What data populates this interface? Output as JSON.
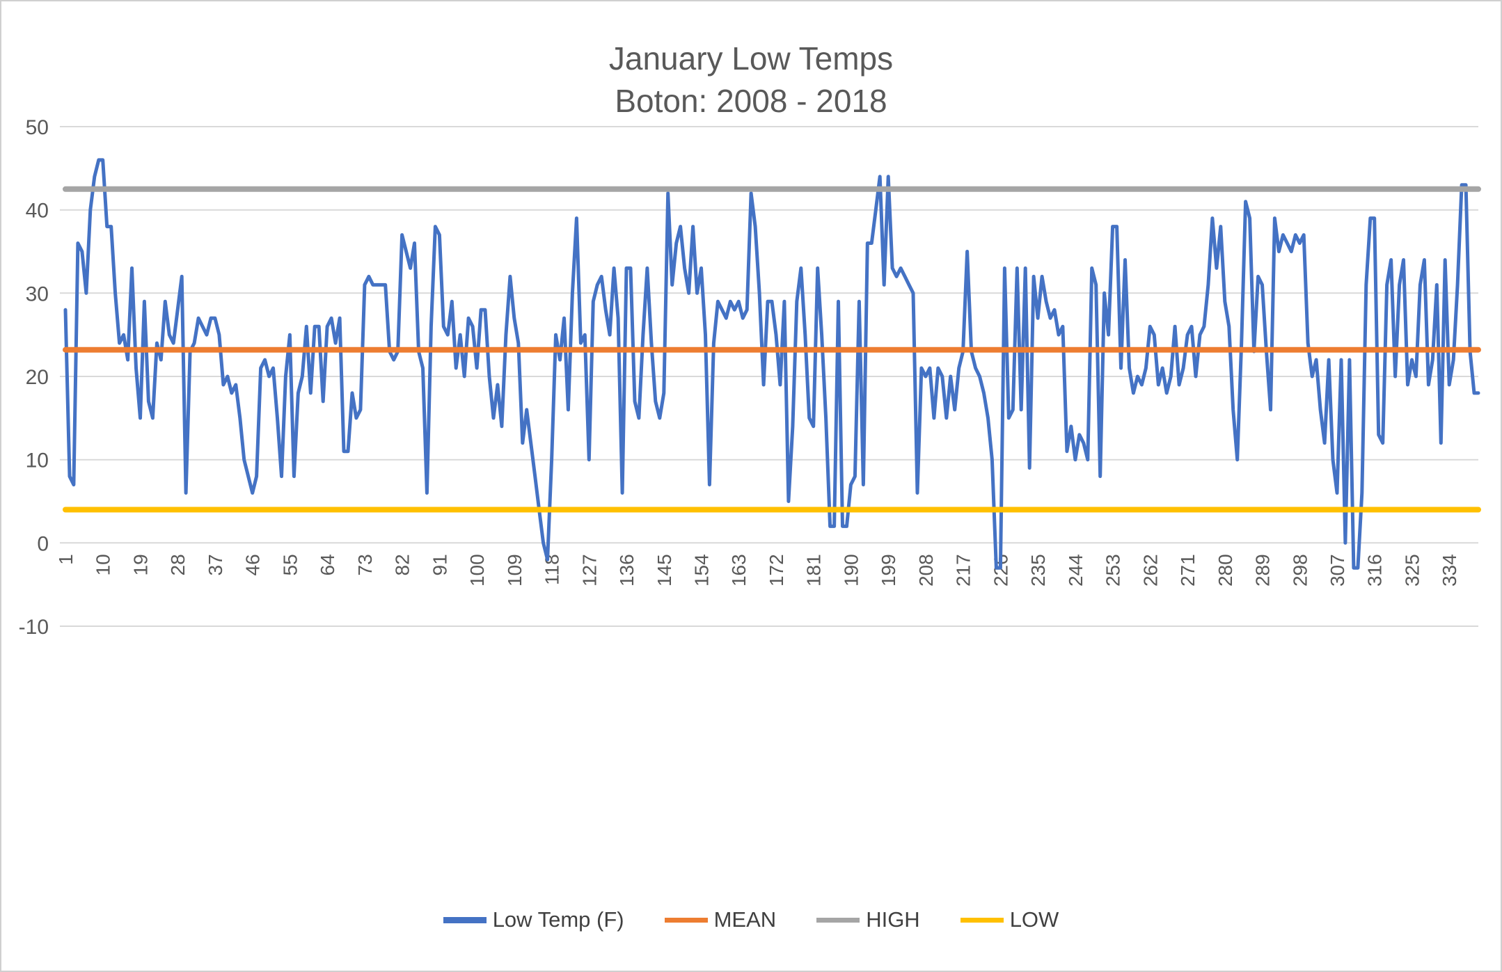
{
  "title": {
    "line1": "January Low Temps",
    "line2": "Boton: 2008 - 2018"
  },
  "legend": [
    {
      "label": "Low Temp (F)",
      "color": "#4472C4"
    },
    {
      "label": "MEAN",
      "color": "#ED7D31"
    },
    {
      "label": "HIGH",
      "color": "#A5A5A5"
    },
    {
      "label": "LOW",
      "color": "#FFC000"
    }
  ],
  "chart_data": {
    "type": "line",
    "title": "January Low Temps",
    "subtitle": "Boton: 2008 - 2018",
    "xlabel": "",
    "ylabel": "",
    "ylim": [
      -10,
      50
    ],
    "y_ticks": [
      50,
      40,
      30,
      20,
      10,
      0,
      -10
    ],
    "x_count": 341,
    "x_tick_labels": [
      1,
      10,
      19,
      28,
      37,
      46,
      55,
      64,
      73,
      82,
      91,
      100,
      109,
      118,
      127,
      136,
      145,
      154,
      163,
      172,
      181,
      190,
      199,
      208,
      217,
      226,
      235,
      244,
      253,
      262,
      271,
      280,
      289,
      298,
      307,
      316,
      325,
      334
    ],
    "grid": true,
    "legend_position": "bottom",
    "colors": {
      "gridline": "#D9D9D9",
      "axis_text": "#595959",
      "title_text": "#595959"
    },
    "series": [
      {
        "id": "low-temp",
        "name": "Low Temp (F)",
        "color": "#4472C4",
        "values": [
          28,
          8,
          7,
          36,
          35,
          30,
          40,
          44,
          46,
          46,
          38,
          38,
          30,
          24,
          25,
          22,
          33,
          21,
          15,
          29,
          17,
          15,
          24,
          22,
          29,
          25,
          24,
          28,
          32,
          6,
          23,
          24,
          27,
          26,
          25,
          27,
          27,
          25,
          19,
          20,
          18,
          19,
          15,
          10,
          8,
          6,
          8,
          21,
          22,
          20,
          21,
          15,
          8,
          20,
          25,
          8,
          18,
          20,
          26,
          18,
          26,
          26,
          17,
          26,
          27,
          24,
          27,
          11,
          11,
          18,
          15,
          16,
          31,
          32,
          31,
          31,
          31,
          31,
          23,
          22,
          23,
          37,
          35,
          33,
          36,
          23,
          21,
          6,
          26,
          38,
          37,
          26,
          25,
          29,
          21,
          25,
          20,
          27,
          26,
          21,
          28,
          28,
          20,
          15,
          19,
          14,
          25,
          32,
          27,
          24,
          12,
          16,
          12,
          8,
          4,
          0,
          -2,
          10,
          25,
          22,
          27,
          16,
          30,
          39,
          24,
          25,
          10,
          29,
          31,
          32,
          28,
          25,
          33,
          27,
          6,
          33,
          33,
          17,
          15,
          25,
          33,
          24,
          17,
          15,
          18,
          42,
          31,
          36,
          38,
          33,
          30,
          38,
          30,
          33,
          25,
          7,
          24,
          29,
          28,
          27,
          29,
          28,
          29,
          27,
          28,
          42,
          38,
          30,
          19,
          29,
          29,
          25,
          19,
          29,
          5,
          14,
          29,
          33,
          25,
          15,
          14,
          33,
          25,
          15,
          2,
          2,
          29,
          2,
          2,
          7,
          8,
          29,
          7,
          36,
          36,
          40,
          44,
          31,
          44,
          33,
          32,
          33,
          32,
          31,
          30,
          6,
          21,
          20,
          21,
          15,
          21,
          20,
          15,
          20,
          16,
          21,
          23,
          35,
          23,
          21,
          20,
          18,
          15,
          10,
          -3,
          -3,
          33,
          15,
          16,
          33,
          16,
          33,
          9,
          32,
          27,
          32,
          29,
          27,
          28,
          25,
          26,
          11,
          14,
          10,
          13,
          12,
          10,
          33,
          31,
          8,
          30,
          25,
          38,
          38,
          21,
          34,
          21,
          18,
          20,
          19,
          21,
          26,
          25,
          19,
          21,
          18,
          20,
          26,
          19,
          21,
          25,
          26,
          20,
          25,
          26,
          31,
          39,
          33,
          38,
          29,
          26,
          16,
          10,
          24,
          41,
          39,
          23,
          32,
          31,
          23,
          16,
          39,
          35,
          37,
          36,
          35,
          37,
          36,
          37,
          24,
          20,
          22,
          16,
          12,
          22,
          10,
          6,
          22,
          0,
          22,
          -3,
          -3,
          6,
          31,
          39,
          39,
          13,
          12,
          31,
          34,
          20,
          31,
          34,
          19,
          22,
          20,
          31,
          34,
          19,
          22,
          31,
          12,
          34,
          19,
          22,
          31,
          43,
          43,
          23,
          18,
          18
        ]
      },
      {
        "id": "mean",
        "name": "MEAN",
        "color": "#ED7D31",
        "value": 23.2
      },
      {
        "id": "high",
        "name": "HIGH",
        "color": "#A5A5A5",
        "value": 42.5
      },
      {
        "id": "low",
        "name": "LOW",
        "color": "#FFC000",
        "value": 4
      }
    ]
  }
}
